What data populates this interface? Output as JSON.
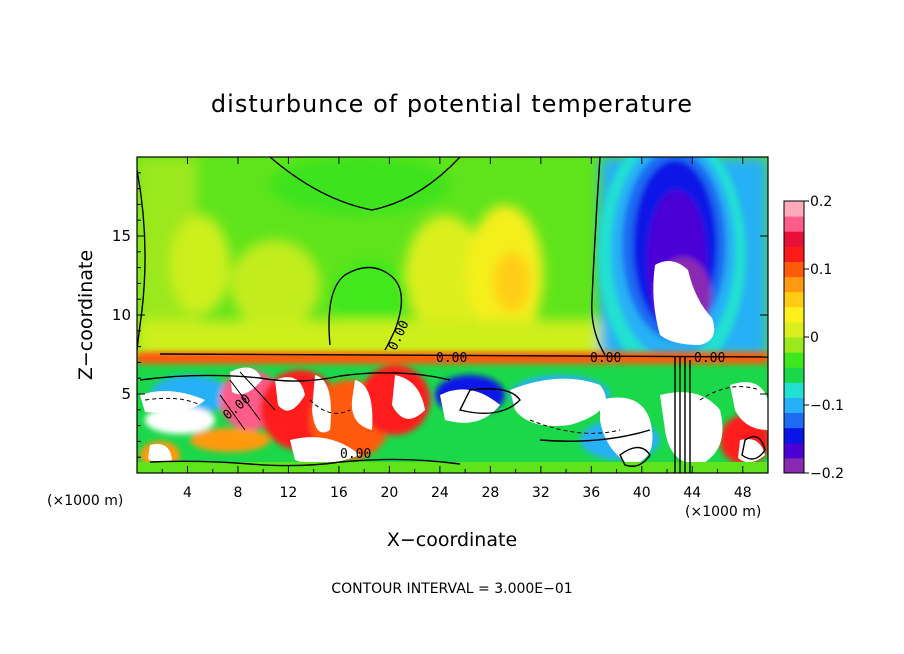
{
  "chart_data": {
    "type": "heatmap",
    "title": "disturbunce of potential temperature",
    "xlabel": "X−coordinate",
    "ylabel": "Z−coordinate",
    "x_unit": "(×1000 m)",
    "z_unit": "(×1000 m)",
    "xlim": [
      0,
      50
    ],
    "ylim": [
      0,
      20
    ],
    "x_ticks": [
      "4",
      "8",
      "12",
      "16",
      "20",
      "24",
      "28",
      "32",
      "36",
      "40",
      "44",
      "48"
    ],
    "y_ticks": [
      "5",
      "10",
      "15"
    ],
    "colorbar": {
      "min": -0.2,
      "max": 0.2,
      "tick_labels": [
        "0.2",
        "0.1",
        "0",
        "−0.1",
        "−0.2"
      ],
      "colors": [
        "#8a2ab2",
        "#4c00d6",
        "#0a14e6",
        "#1f6af2",
        "#27b0f5",
        "#22e0d2",
        "#1ad84a",
        "#3fe81e",
        "#9be81c",
        "#dcef1e",
        "#fff01c",
        "#ffcc14",
        "#ff9a10",
        "#ff5a0a",
        "#ff1a1a",
        "#e81038",
        "#ff5c8a",
        "#ffaab8"
      ]
    },
    "contour_labels": [
      "0.00",
      "0.00",
      "0.00",
      "0.00",
      "0.00",
      "0.00"
    ],
    "footer": "CONTOUR INTERVAL = 3.000E−01"
  }
}
